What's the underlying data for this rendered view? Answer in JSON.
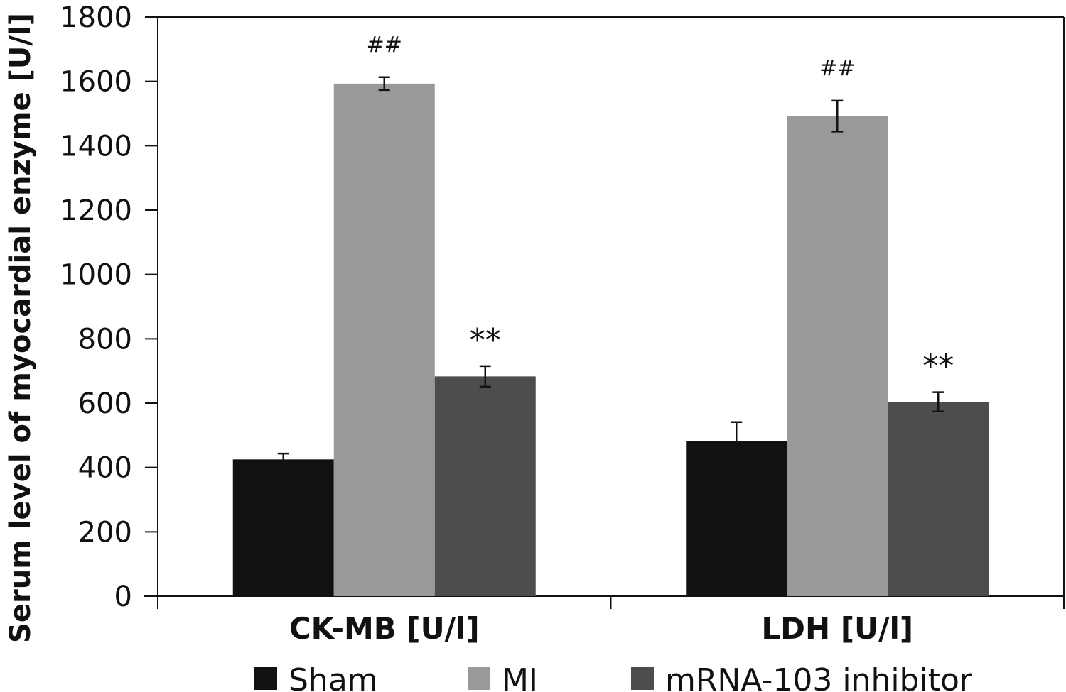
{
  "chart_data": {
    "type": "bar",
    "title": "",
    "xlabel": "",
    "ylabel": "Serum level of myocardial enzyme [U/l]",
    "ylim": [
      0,
      1800
    ],
    "yticks": [
      0,
      200,
      400,
      600,
      800,
      1000,
      1200,
      1400,
      1600,
      1800
    ],
    "grid": false,
    "legend_position": "bottom",
    "categories": [
      "CK-MB [U/l]",
      "LDH [U/l]"
    ],
    "series": [
      {
        "name": "Sham",
        "color": "#111111",
        "values": [
          425,
          483
        ],
        "errors": [
          18,
          58
        ],
        "annotations": [
          "",
          ""
        ]
      },
      {
        "name": "MI",
        "color": "#999999",
        "values": [
          1593,
          1492
        ],
        "errors": [
          20,
          48
        ],
        "annotations": [
          "##",
          "##"
        ]
      },
      {
        "name": "mRNA-103 inhibitor",
        "color": "#4d4d4d",
        "values": [
          683,
          604
        ],
        "errors": [
          32,
          30
        ],
        "annotations": [
          "**",
          "**"
        ]
      }
    ]
  }
}
